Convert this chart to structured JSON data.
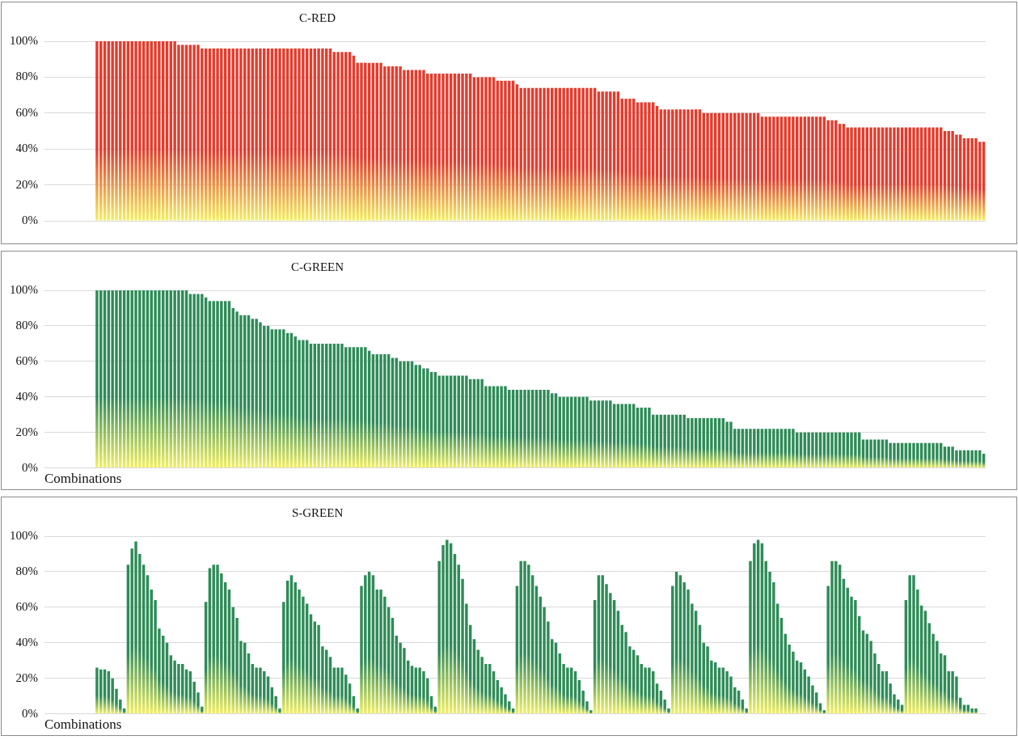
{
  "chart_data": [
    {
      "type": "bar",
      "title": "C-RED",
      "color": "#e53b2c",
      "ylim": [
        0,
        100
      ],
      "yticks": [
        {
          "value": 0,
          "label": "0%"
        },
        {
          "value": 20,
          "label": "20%"
        },
        {
          "value": 40,
          "label": "40%"
        },
        {
          "value": 60,
          "label": "60%"
        },
        {
          "value": 80,
          "label": "80%"
        },
        {
          "value": 100,
          "label": "100%"
        }
      ],
      "grid": "y",
      "categories": [
        null,
        null,
        null,
        null,
        null,
        null,
        null,
        null,
        null,
        null,
        null,
        null,
        null,
        null,
        null,
        null,
        null,
        null,
        null,
        null,
        null,
        null,
        null,
        null,
        null,
        null,
        null,
        null,
        null,
        null,
        null,
        null,
        null,
        null,
        null,
        null,
        null,
        null,
        null,
        null,
        null,
        null,
        null,
        null,
        null,
        null,
        null,
        null,
        null,
        null,
        null,
        null,
        null,
        null,
        null,
        null,
        null,
        null,
        null,
        null,
        null,
        null,
        null,
        null,
        null,
        null,
        null,
        null,
        null,
        null,
        null,
        null,
        null,
        null,
        null,
        null,
        null,
        null,
        null,
        null,
        null,
        null,
        null,
        null,
        null,
        null,
        null,
        null,
        null,
        null,
        null,
        null,
        null,
        null,
        null,
        null,
        null,
        null,
        null,
        null,
        null,
        null,
        null,
        null,
        null,
        null,
        null,
        null,
        null,
        null,
        null,
        null,
        null,
        null,
        null,
        null,
        null,
        null,
        null,
        null,
        null,
        null,
        null,
        null,
        null,
        null,
        null,
        null,
        null,
        null,
        null,
        null,
        null,
        null,
        null,
        null,
        null,
        null,
        null,
        null,
        null,
        null,
        null,
        null,
        null,
        null,
        null,
        null,
        null,
        null,
        null,
        null,
        null,
        null,
        null,
        null,
        null,
        null,
        null,
        null,
        null,
        null,
        null,
        null,
        null,
        null,
        null,
        null,
        null,
        null,
        null,
        null,
        null,
        null,
        null,
        null,
        null,
        null,
        null,
        null,
        null,
        null,
        null,
        null,
        null,
        null,
        null,
        null,
        null,
        null,
        null,
        null,
        null,
        null,
        null,
        null,
        null,
        null,
        null,
        null,
        null,
        null,
        null,
        null,
        null,
        null,
        null,
        null,
        null,
        null,
        null,
        null,
        null,
        null,
        null,
        null,
        null,
        null,
        null,
        null,
        null,
        null,
        null,
        null,
        null,
        null,
        null,
        null,
        null,
        null,
        null,
        null,
        null,
        null,
        null,
        null,
        null,
        null,
        null,
        null,
        null,
        null
      ],
      "values": [
        null,
        null,
        null,
        null,
        null,
        null,
        null,
        null,
        null,
        null,
        null,
        null,
        null,
        100,
        100,
        100,
        100,
        100,
        100,
        100,
        100,
        100,
        100,
        100,
        100,
        100,
        100,
        100,
        100,
        100,
        100,
        100,
        100,
        100,
        98,
        98,
        98,
        98,
        98,
        98,
        96,
        96,
        96,
        96,
        96,
        96,
        96,
        96,
        96,
        96,
        96,
        96,
        96,
        96,
        96,
        96,
        96,
        96,
        96,
        96,
        96,
        96,
        96,
        96,
        96,
        96,
        96,
        96,
        96,
        96,
        96,
        96,
        96,
        96,
        94,
        94,
        94,
        94,
        94,
        92,
        88,
        88,
        88,
        88,
        88,
        88,
        88,
        86,
        86,
        86,
        86,
        86,
        84,
        84,
        84,
        84,
        84,
        84,
        82,
        82,
        82,
        82,
        82,
        82,
        82,
        82,
        82,
        82,
        82,
        82,
        80,
        80,
        80,
        80,
        80,
        80,
        78,
        78,
        78,
        78,
        78,
        76,
        74,
        74,
        74,
        74,
        74,
        74,
        74,
        74,
        74,
        74,
        74,
        74,
        74,
        74,
        74,
        74,
        74,
        74,
        74,
        74,
        72,
        72,
        72,
        72,
        72,
        72,
        68,
        68,
        68,
        68,
        66,
        66,
        66,
        66,
        66,
        64,
        62,
        62,
        62,
        62,
        62,
        62,
        62,
        62,
        62,
        62,
        62,
        60,
        60,
        60,
        60,
        60,
        60,
        60,
        60,
        60,
        60,
        60,
        60,
        60,
        60,
        60,
        58,
        58,
        58,
        58,
        58,
        58,
        58,
        58,
        58,
        58,
        58,
        58,
        58,
        58,
        58,
        58,
        58,
        56,
        56,
        56,
        54,
        54,
        52,
        52,
        52,
        52,
        52,
        52,
        52,
        52,
        52,
        52,
        52,
        52,
        52,
        52,
        52,
        52,
        52,
        52,
        52,
        52,
        52,
        52,
        52,
        52,
        52,
        50,
        50,
        50,
        48,
        48,
        46,
        46,
        46,
        46,
        44,
        44
      ]
    },
    {
      "type": "bar",
      "title": "C-GREEN",
      "xlabel": "Combinations",
      "color": "#2e8b57",
      "ylim": [
        0,
        100
      ],
      "yticks": [
        {
          "value": 0,
          "label": "0%"
        },
        {
          "value": 20,
          "label": "20%"
        },
        {
          "value": 40,
          "label": "40%"
        },
        {
          "value": 60,
          "label": "60%"
        },
        {
          "value": 80,
          "label": "80%"
        },
        {
          "value": 100,
          "label": "100%"
        }
      ],
      "grid": "y",
      "categories": [
        null,
        null,
        null,
        null,
        null,
        null,
        null,
        null,
        null,
        null,
        null,
        null,
        null,
        null,
        null,
        null,
        null,
        null,
        null,
        null,
        null,
        null,
        null,
        null,
        null,
        null,
        null,
        null,
        null,
        null,
        null,
        null,
        null,
        null,
        null,
        null,
        null,
        null,
        null,
        null,
        null,
        null,
        null,
        null,
        null,
        null,
        null,
        null,
        null,
        null,
        null,
        null,
        null,
        null,
        null,
        null,
        null,
        null,
        null,
        null,
        null,
        null,
        null,
        null,
        null,
        null,
        null,
        null,
        null,
        null,
        null,
        null,
        null,
        null,
        null,
        null,
        null,
        null,
        null,
        null,
        null,
        null,
        null,
        null,
        null,
        null,
        null,
        null,
        null,
        null,
        null,
        null,
        null,
        null,
        null,
        null,
        null,
        null,
        null,
        null,
        null,
        null,
        null,
        null,
        null,
        null,
        null,
        null,
        null,
        null,
        null,
        null,
        null,
        null,
        null,
        null,
        null,
        null,
        null,
        null,
        null,
        null,
        null,
        null,
        null,
        null,
        null,
        null,
        null,
        null,
        null,
        null,
        null,
        null,
        null,
        null,
        null,
        null,
        null,
        null,
        null,
        null,
        null,
        null,
        null,
        null,
        null,
        null,
        null,
        null,
        null,
        null,
        null,
        null,
        null,
        null,
        null,
        null,
        null,
        null,
        null,
        null,
        null,
        null,
        null,
        null,
        null,
        null,
        null,
        null,
        null,
        null,
        null,
        null,
        null,
        null,
        null,
        null,
        null,
        null,
        null,
        null,
        null,
        null,
        null,
        null,
        null,
        null,
        null,
        null,
        null,
        null,
        null,
        null,
        null,
        null,
        null,
        null,
        null,
        null,
        null,
        null,
        null,
        null,
        null,
        null,
        null,
        null,
        null,
        null,
        null,
        null,
        null,
        null,
        null,
        null,
        null,
        null,
        null,
        null,
        null,
        null,
        null,
        null,
        null,
        null,
        null,
        null,
        null,
        null,
        null,
        null,
        null,
        null,
        null,
        null,
        null,
        null,
        null,
        null,
        null,
        null
      ],
      "values": [
        null,
        null,
        null,
        null,
        null,
        null,
        null,
        null,
        null,
        null,
        null,
        null,
        null,
        100,
        100,
        100,
        100,
        100,
        100,
        100,
        100,
        100,
        100,
        100,
        100,
        100,
        100,
        100,
        100,
        100,
        100,
        100,
        100,
        100,
        100,
        100,
        100,
        98,
        98,
        98,
        98,
        96,
        94,
        94,
        94,
        94,
        94,
        94,
        90,
        88,
        86,
        86,
        86,
        84,
        84,
        82,
        80,
        80,
        78,
        78,
        78,
        78,
        76,
        76,
        74,
        72,
        72,
        72,
        70,
        70,
        70,
        70,
        70,
        70,
        70,
        70,
        70,
        68,
        68,
        68,
        68,
        68,
        68,
        66,
        64,
        64,
        64,
        64,
        64,
        62,
        62,
        60,
        60,
        60,
        60,
        58,
        58,
        56,
        56,
        54,
        54,
        52,
        52,
        52,
        52,
        52,
        52,
        52,
        52,
        50,
        50,
        50,
        50,
        46,
        46,
        46,
        46,
        46,
        46,
        44,
        44,
        44,
        44,
        44,
        44,
        44,
        44,
        44,
        44,
        44,
        42,
        42,
        40,
        40,
        40,
        40,
        40,
        40,
        40,
        40,
        38,
        38,
        38,
        38,
        38,
        38,
        36,
        36,
        36,
        36,
        36,
        36,
        34,
        34,
        34,
        34,
        30,
        30,
        30,
        30,
        30,
        30,
        30,
        30,
        30,
        28,
        28,
        28,
        28,
        28,
        28,
        28,
        28,
        28,
        28,
        26,
        26,
        22,
        22,
        22,
        22,
        22,
        22,
        22,
        22,
        22,
        22,
        22,
        22,
        22,
        22,
        22,
        22,
        20,
        20,
        20,
        20,
        20,
        20,
        20,
        20,
        20,
        20,
        20,
        20,
        20,
        20,
        20,
        20,
        20,
        16,
        16,
        16,
        16,
        16,
        16,
        16,
        14,
        14,
        14,
        14,
        14,
        14,
        14,
        14,
        14,
        14,
        14,
        14,
        14,
        14,
        12,
        12,
        12,
        10,
        10,
        10,
        10,
        10,
        10,
        10,
        8
      ]
    },
    {
      "type": "bar",
      "title": "S-GREEN",
      "xlabel": "Combinations",
      "color": "#2e8b57",
      "ylim": [
        0,
        100
      ],
      "yticks": [
        {
          "value": 0,
          "label": "0%"
        },
        {
          "value": 20,
          "label": "20%"
        },
        {
          "value": 40,
          "label": "40%"
        },
        {
          "value": 60,
          "label": "60%"
        },
        {
          "value": 80,
          "label": "80%"
        },
        {
          "value": 100,
          "label": "100%"
        }
      ],
      "grid": "y",
      "categories": [
        null,
        null,
        null,
        null,
        null,
        null,
        null,
        null,
        null,
        null,
        null,
        null,
        null,
        null,
        null,
        null,
        null,
        null,
        null,
        null,
        null,
        null,
        null,
        null,
        null,
        null,
        null,
        null,
        null,
        null,
        null,
        null,
        null,
        null,
        null,
        null,
        null,
        null,
        null,
        null,
        null,
        null,
        null,
        null,
        null,
        null,
        null,
        null,
        null,
        null,
        null,
        null,
        null,
        null,
        null,
        null,
        null,
        null,
        null,
        null,
        null,
        null,
        null,
        null,
        null,
        null,
        null,
        null,
        null,
        null,
        null,
        null,
        null,
        null,
        null,
        null,
        null,
        null,
        null,
        null,
        null,
        null,
        null,
        null,
        null,
        null,
        null,
        null,
        null,
        null,
        null,
        null,
        null,
        null,
        null,
        null,
        null,
        null,
        null,
        null,
        null,
        null,
        null,
        null,
        null,
        null,
        null,
        null,
        null,
        null,
        null,
        null,
        null,
        null,
        null,
        null,
        null,
        null,
        null,
        null,
        null,
        null,
        null,
        null,
        null,
        null,
        null,
        null,
        null,
        null,
        null,
        null,
        null,
        null,
        null,
        null,
        null,
        null,
        null,
        null,
        null,
        null,
        null,
        null,
        null,
        null,
        null,
        null,
        null,
        null,
        null,
        null,
        null,
        null,
        null,
        null,
        null,
        null,
        null,
        null,
        null,
        null,
        null,
        null,
        null,
        null,
        null,
        null,
        null,
        null,
        null,
        null,
        null,
        null,
        null,
        null,
        null,
        null,
        null,
        null,
        null,
        null,
        null,
        null,
        null,
        null,
        null,
        null,
        null,
        null,
        null,
        null,
        null,
        null,
        null,
        null,
        null,
        null,
        null,
        null,
        null,
        null,
        null,
        null,
        null,
        null,
        null,
        null,
        null,
        null,
        null,
        null,
        null,
        null,
        null,
        null,
        null,
        null,
        null,
        null,
        null,
        null,
        null,
        null,
        null,
        null,
        null,
        null,
        null,
        null,
        null,
        null,
        null,
        null,
        null,
        null,
        null,
        null,
        null,
        null,
        null,
        null
      ],
      "values": [
        null,
        null,
        null,
        null,
        null,
        null,
        null,
        null,
        null,
        null,
        null,
        null,
        null,
        26,
        25,
        25,
        24,
        20,
        14,
        8,
        3,
        84,
        93,
        97,
        90,
        84,
        78,
        70,
        64,
        48,
        44,
        40,
        33,
        30,
        28,
        28,
        25,
        24,
        18,
        12,
        4,
        63,
        82,
        84,
        84,
        79,
        74,
        70,
        60,
        54,
        41,
        40,
        34,
        28,
        26,
        26,
        24,
        21,
        15,
        10,
        3,
        63,
        75,
        78,
        74,
        70,
        66,
        62,
        56,
        52,
        50,
        38,
        36,
        32,
        26,
        26,
        26,
        22,
        17,
        10,
        3,
        72,
        78,
        80,
        78,
        70,
        70,
        66,
        60,
        54,
        44,
        40,
        37,
        30,
        27,
        26,
        26,
        24,
        20,
        10,
        4,
        86,
        95,
        98,
        96,
        90,
        84,
        76,
        62,
        50,
        42,
        36,
        32,
        28,
        28,
        24,
        19,
        15,
        11,
        7,
        3,
        72,
        86,
        86,
        84,
        78,
        72,
        66,
        60,
        52,
        42,
        40,
        34,
        28,
        26,
        26,
        24,
        19,
        13,
        7,
        2,
        64,
        78,
        78,
        73,
        68,
        64,
        58,
        50,
        46,
        38,
        36,
        33,
        28,
        26,
        26,
        24,
        17,
        13,
        8,
        3,
        72,
        80,
        78,
        74,
        70,
        62,
        58,
        50,
        40,
        38,
        30,
        29,
        26,
        26,
        24,
        21,
        15,
        13,
        8,
        3,
        86,
        96,
        98,
        96,
        86,
        80,
        74,
        62,
        54,
        45,
        39,
        35,
        30,
        29,
        25,
        21,
        16,
        12,
        6,
        2,
        72,
        86,
        86,
        84,
        76,
        71,
        66,
        64,
        55,
        47,
        45,
        41,
        34,
        28,
        24,
        24,
        17,
        11,
        8,
        5,
        64,
        78,
        78,
        70,
        61,
        58,
        51,
        45,
        41,
        34,
        33,
        24,
        24,
        21,
        9,
        5,
        5,
        3,
        3,
        0,
        0
      ]
    }
  ]
}
